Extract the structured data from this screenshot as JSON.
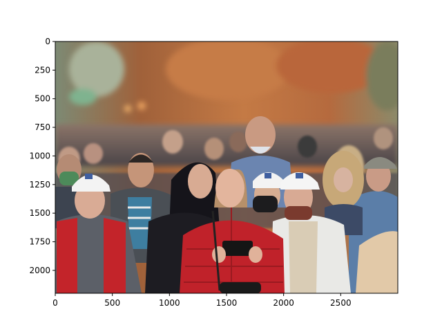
{
  "axes": {
    "x_range": [
      0,
      3000
    ],
    "y_range": [
      0,
      2200
    ],
    "y_inverted": true,
    "x_ticks": [
      "0",
      "500",
      "1000",
      "1500",
      "2000",
      "2500"
    ],
    "y_ticks": [
      "0",
      "250",
      "500",
      "750",
      "1000",
      "1250",
      "1500",
      "1750",
      "2000"
    ],
    "grid": false
  },
  "image": {
    "subject": "crowd of people walking outdoors under autumn trees, woman in red quilted jacket holding a phone in the center",
    "palette": {
      "background_foliage": "#b86a3a",
      "sky_left": "#8a9a80",
      "red_jacket": "#c0222a",
      "white_cap": "#f2f2f2",
      "white_jacket": "#e8e8e6",
      "dark_coat": "#1e1e22",
      "gray_sweater": "#5c6068"
    }
  }
}
